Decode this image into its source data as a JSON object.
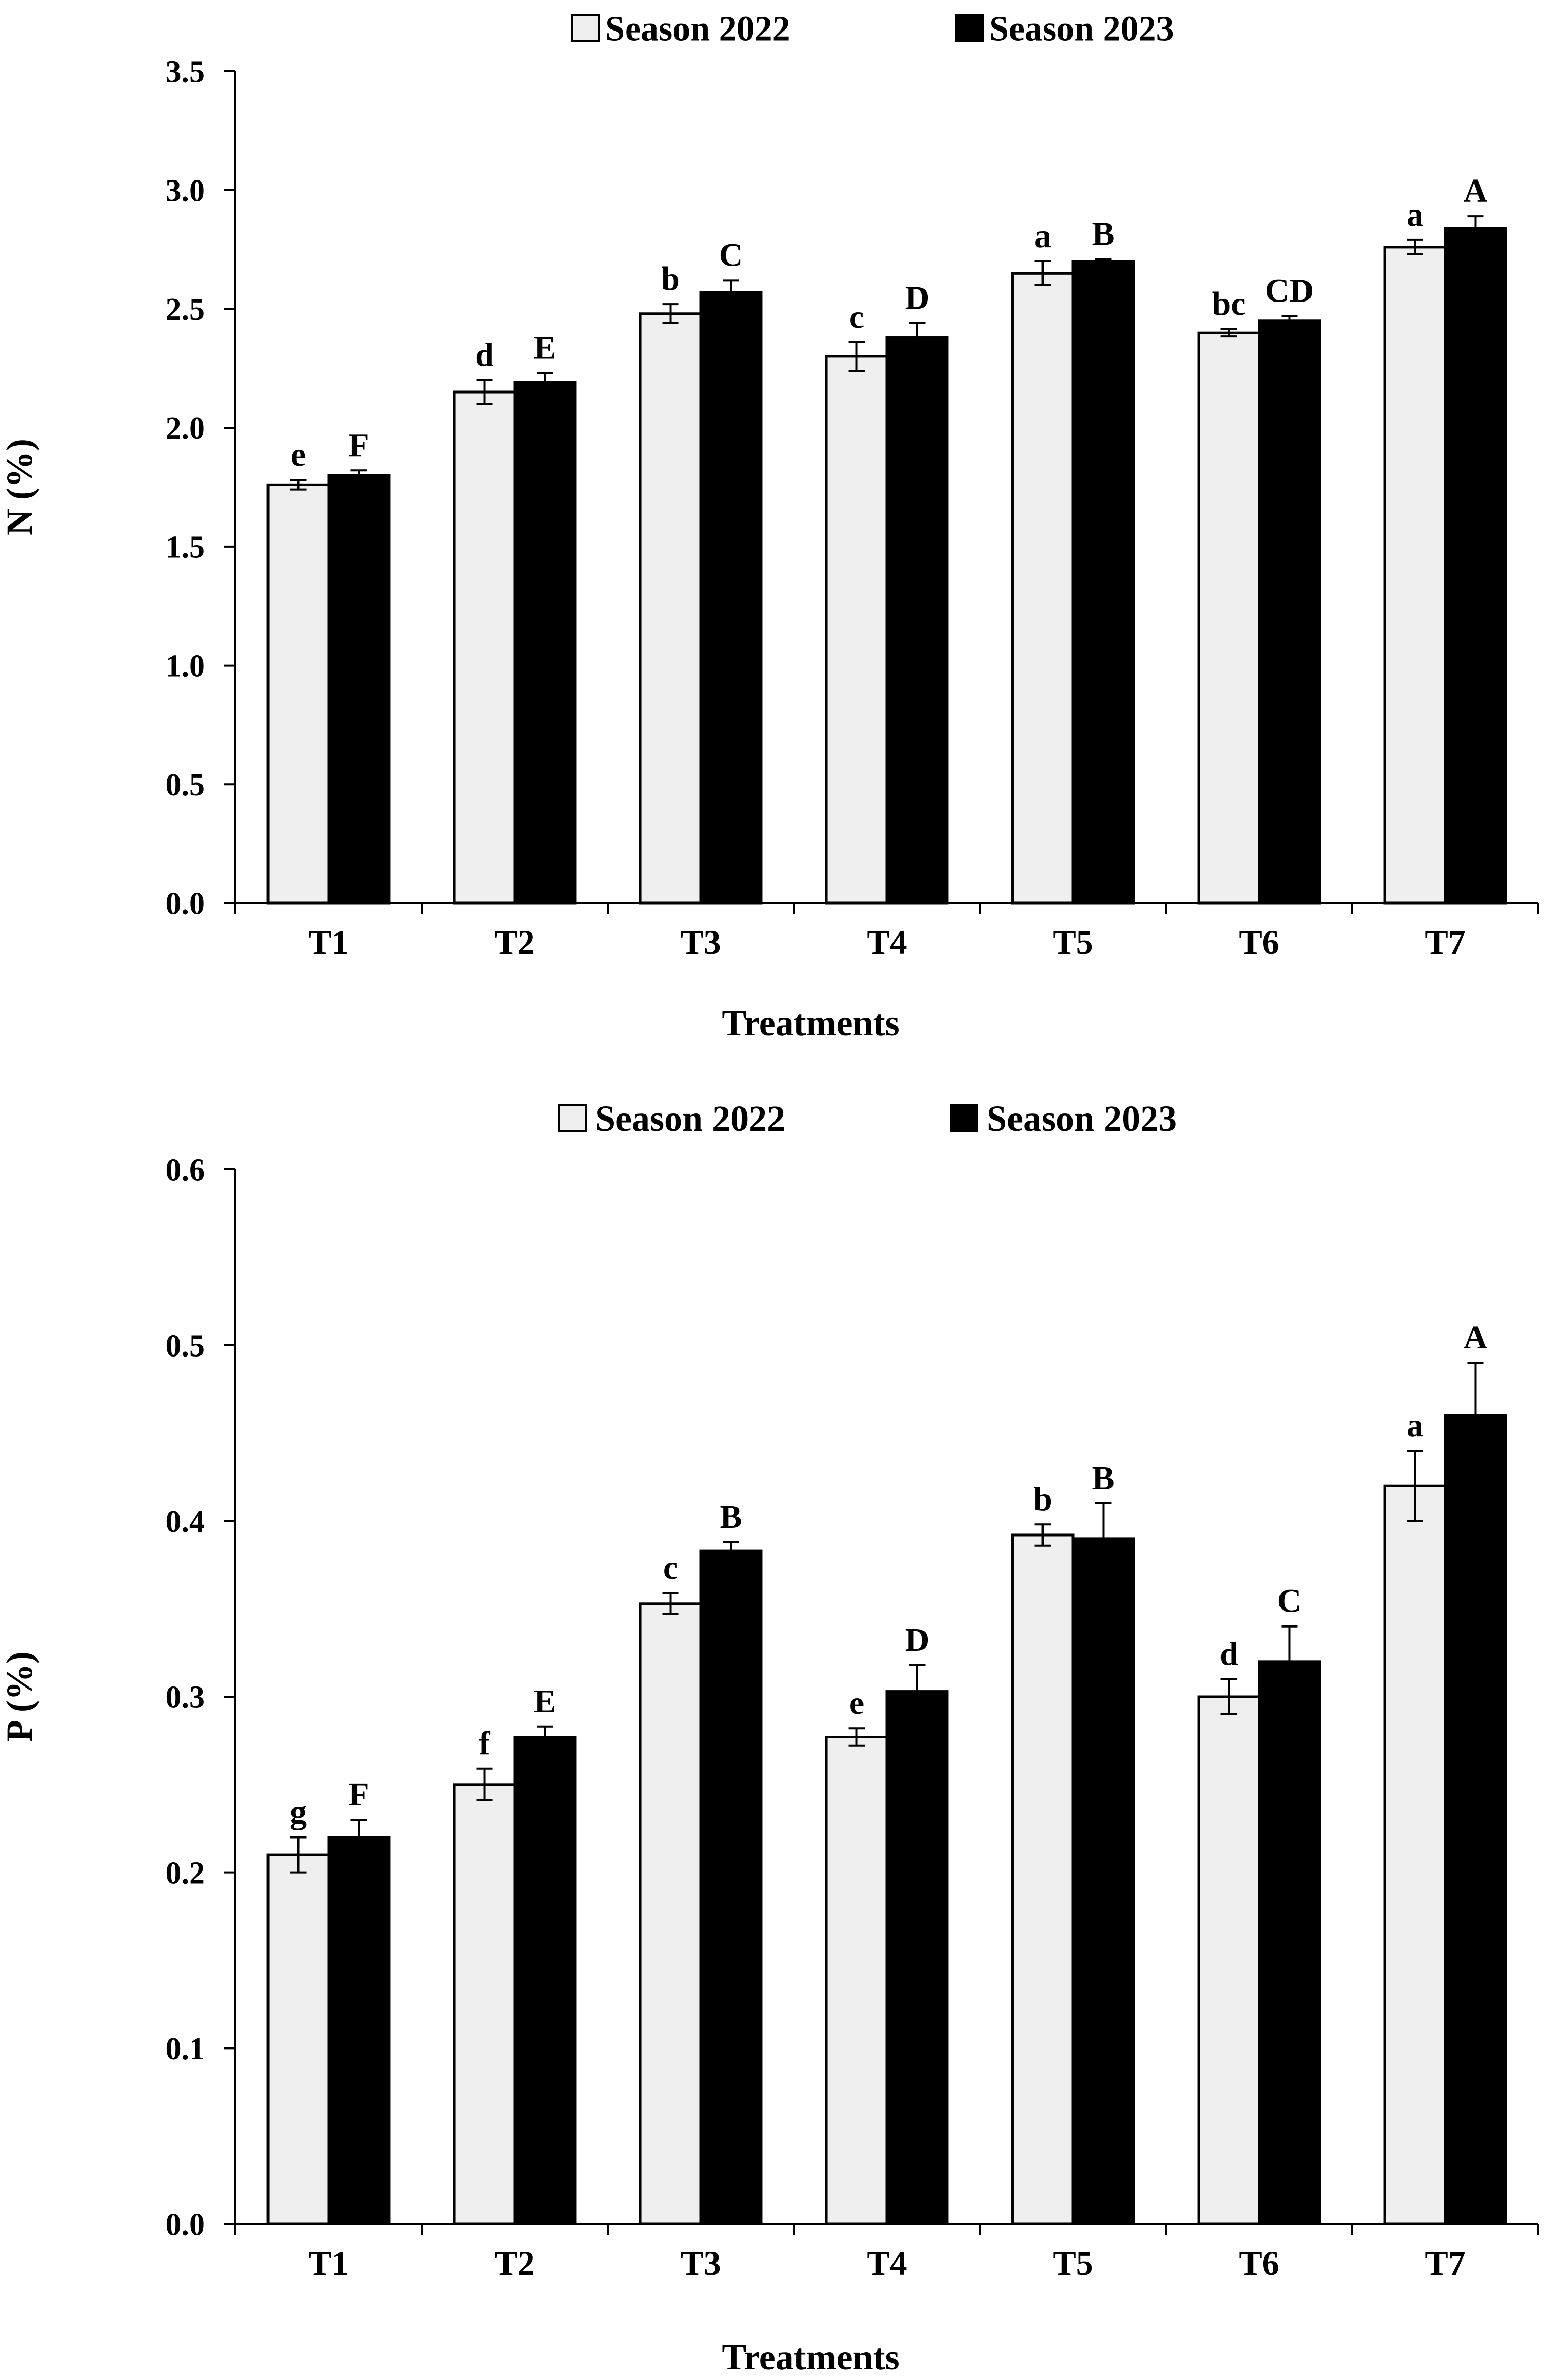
{
  "chart_data": [
    {
      "type": "bar",
      "categories": [
        "T1",
        "T2",
        "T3",
        "T4",
        "T5",
        "T6",
        "T7"
      ],
      "series": [
        {
          "name": "Season 2022",
          "color": "#efefef",
          "values": [
            1.76,
            2.15,
            2.48,
            2.3,
            2.65,
            2.4,
            2.76
          ],
          "errors": [
            0.02,
            0.05,
            0.04,
            0.06,
            0.05,
            0.015,
            0.03
          ],
          "letters": [
            "e",
            "d",
            "b",
            "c",
            "a",
            "bc",
            "a"
          ]
        },
        {
          "name": "Season 2023",
          "color": "#000000",
          "values": [
            1.8,
            2.19,
            2.57,
            2.38,
            2.7,
            2.45,
            2.84
          ],
          "errors": [
            0.02,
            0.04,
            0.05,
            0.06,
            0.01,
            0.02,
            0.05
          ],
          "letters": [
            "F",
            "E",
            "C",
            "D",
            "B",
            "CD",
            "A"
          ]
        }
      ],
      "title": "",
      "xlabel": "Treatments",
      "ylabel": "N (%)",
      "ylim": [
        0,
        3.5
      ],
      "yticks": [
        "0.0",
        "0.5",
        "1.0",
        "1.5",
        "2.0",
        "2.5",
        "3.0",
        "3.5"
      ],
      "grid": false,
      "legend": "top-center"
    },
    {
      "type": "bar",
      "categories": [
        "T1",
        "T2",
        "T3",
        "T4",
        "T5",
        "T6",
        "T7"
      ],
      "series": [
        {
          "name": "Season 2022",
          "color": "#efefef",
          "values": [
            0.21,
            0.25,
            0.353,
            0.277,
            0.392,
            0.3,
            0.42
          ],
          "errors": [
            0.01,
            0.009,
            0.006,
            0.005,
            0.006,
            0.01,
            0.02
          ],
          "letters": [
            "g",
            "f",
            "c",
            "e",
            "b",
            "d",
            "a"
          ]
        },
        {
          "name": "Season 2023",
          "color": "#000000",
          "values": [
            0.22,
            0.277,
            0.383,
            0.303,
            0.39,
            0.32,
            0.46
          ],
          "errors": [
            0.01,
            0.006,
            0.005,
            0.015,
            0.02,
            0.02,
            0.03
          ],
          "letters": [
            "F",
            "E",
            "B",
            "D",
            "B",
            "C",
            "A"
          ]
        }
      ],
      "title": "",
      "xlabel": "Treatments",
      "ylabel": "P (%)",
      "ylim": [
        0,
        0.6
      ],
      "yticks": [
        "0.0",
        "0.1",
        "0.2",
        "0.3",
        "0.4",
        "0.5",
        "0.6"
      ],
      "grid": false,
      "legend": "top-center"
    }
  ]
}
